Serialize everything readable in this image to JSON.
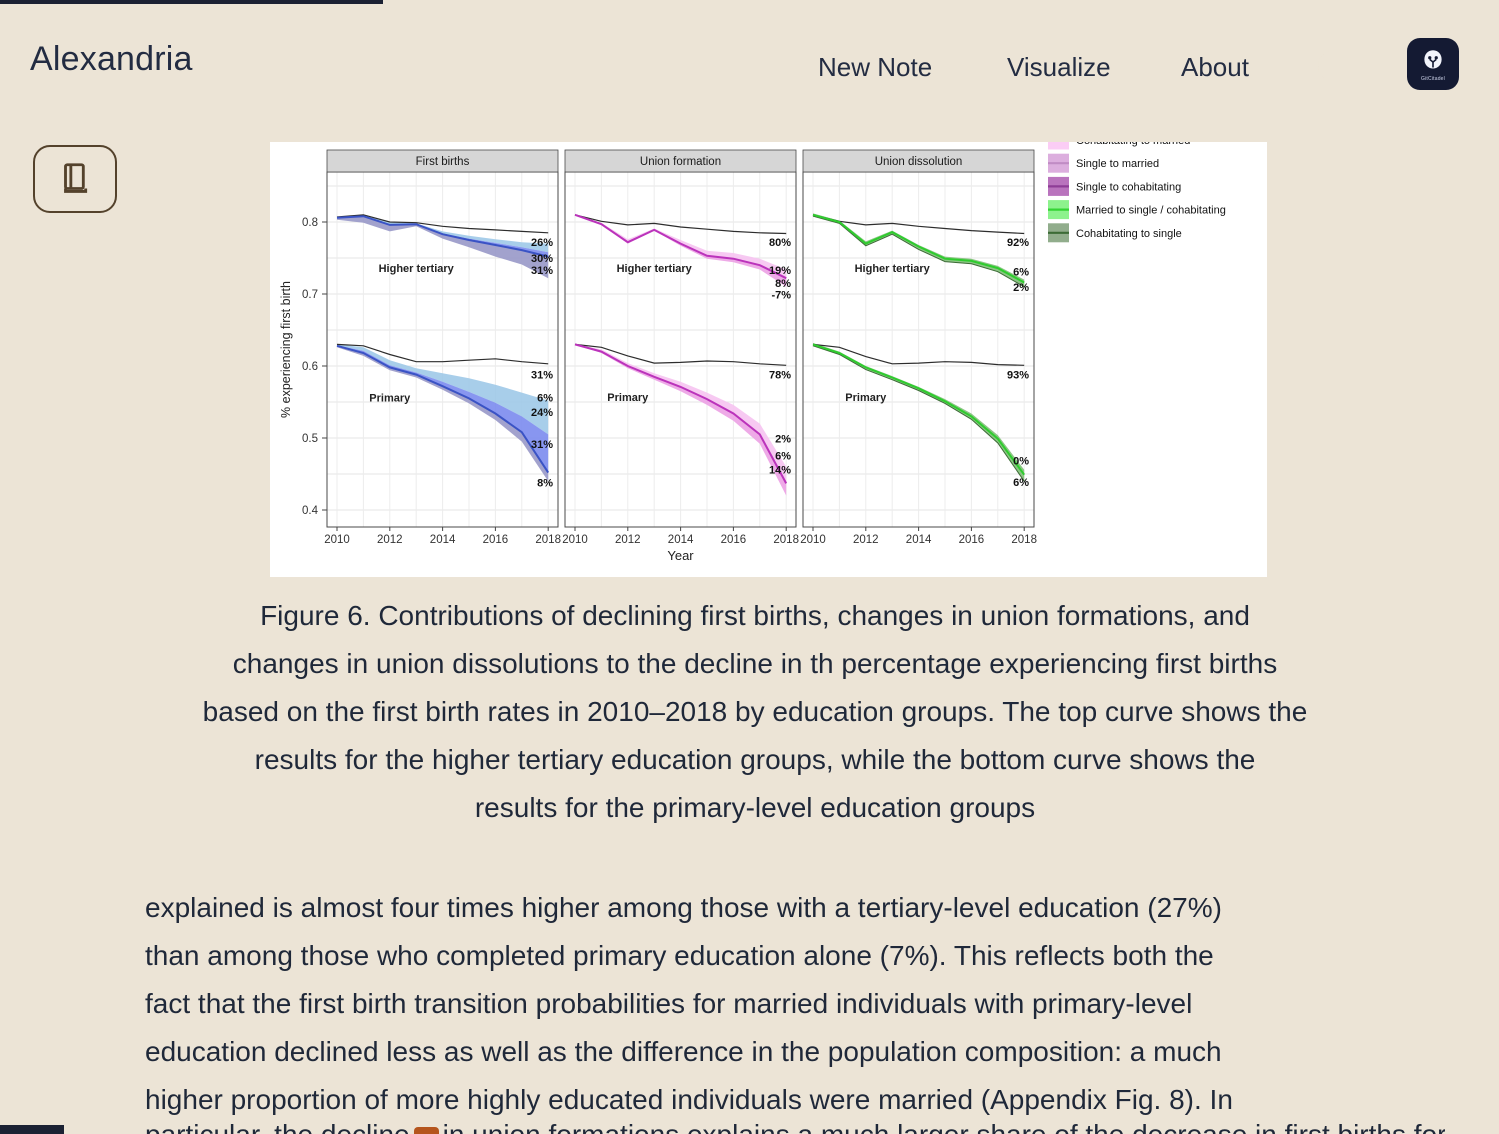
{
  "header": {
    "brand": "Alexandria",
    "nav_items": [
      "New Note",
      "Visualize",
      "About"
    ],
    "badge_label": "GitCitadel"
  },
  "figure": {
    "caption_lines": [
      "Figure 6. Contributions of declining first births, changes in union formations, and",
      "changes in union dissolutions to the decline in th percentage experiencing first births",
      "based on the first birth rates in 2010–2018 by education groups. The top curve shows the",
      "results for the higher tertiary education groups, while the bottom curve shows the",
      "results for the primary-level education groups"
    ]
  },
  "article": {
    "lines": [
      "explained is almost four times higher among those with a tertiary-level education (27%)",
      "than among those who completed primary education alone (7%). This reflects both the",
      "fact that the first birth transition probabilities for married individuals with primary-level",
      "education declined less as well as the difference in the population composition: a much",
      "higher proportion of more highly educated individuals were married (Appendix Fig. 8). In"
    ],
    "partial_before": "particular, the decline",
    "partial_after": "in union formations explains a much larger share of the decrease in first births for the"
  },
  "chart_data": {
    "type": "line",
    "x": [
      2010,
      2011,
      2012,
      2013,
      2014,
      2015,
      2016,
      2017,
      2018
    ],
    "x_ticks": [
      2010,
      2012,
      2014,
      2016,
      2018
    ],
    "y_ticks": [
      0.4,
      0.5,
      0.6,
      0.7,
      0.8
    ],
    "ylim": [
      0.376,
      0.869
    ],
    "xlabel": "Year",
    "ylabel": "% experiencing first birth",
    "legend": [
      {
        "label": "Cohabitating to married",
        "fill": "#fbcdf5",
        "line": "#f0a8e8"
      },
      {
        "label": "Single to married",
        "fill": "#dcaede",
        "line": "#c08cc4"
      },
      {
        "label": "Single to cohabitating",
        "fill": "#b973bd",
        "line": "#8e3d96"
      },
      {
        "label": "Married to single / cohabitating",
        "fill": "#8df28d",
        "line": "#35d435"
      },
      {
        "label": "Cohabitating to single",
        "fill": "#91ad8c",
        "line": "#3c6b36"
      }
    ],
    "panels": [
      {
        "title": "First births",
        "groups": [
          {
            "name": "Higher tertiary",
            "name_pos": {
              "year": 2013,
              "v": 0.736
            },
            "black": [
              0.807,
              0.81,
              0.8,
              0.799,
              0.794,
              0.791,
              0.789,
              0.787,
              0.785
            ],
            "bands": [
              {
                "color": "#9fc9e8",
                "upper": [
                  0.807,
                  0.81,
                  0.8,
                  0.798,
                  0.787,
                  0.781,
                  0.776,
                  0.772,
                  0.77
                ],
                "lower": [
                  0.806,
                  0.808,
                  0.796,
                  0.797,
                  0.784,
                  0.777,
                  0.771,
                  0.765,
                  0.758
                ]
              },
              {
                "color": "#7b8bee",
                "upper": [
                  0.806,
                  0.808,
                  0.796,
                  0.797,
                  0.784,
                  0.777,
                  0.771,
                  0.765,
                  0.758
                ],
                "lower": [
                  0.806,
                  0.808,
                  0.796,
                  0.797,
                  0.783,
                  0.775,
                  0.768,
                  0.761,
                  0.752
                ]
              },
              {
                "color": "#9898c8",
                "upper": [
                  0.806,
                  0.808,
                  0.796,
                  0.797,
                  0.783,
                  0.775,
                  0.768,
                  0.761,
                  0.752
                ],
                "lower": [
                  0.803,
                  0.799,
                  0.787,
                  0.794,
                  0.777,
                  0.765,
                  0.752,
                  0.741,
                  0.722
                ]
              }
            ],
            "lines": [
              {
                "color": "#3a53c5",
                "width": 2,
                "values": [
                  0.806,
                  0.808,
                  0.796,
                  0.797,
                  0.783,
                  0.775,
                  0.768,
                  0.761,
                  0.752
                ]
              }
            ],
            "annotations": [
              {
                "text": "26%",
                "v": 0.772
              },
              {
                "text": "30%",
                "v": 0.75
              },
              {
                "text": "31%",
                "v": 0.733
              }
            ]
          },
          {
            "name": "Primary",
            "name_pos": {
              "year": 2012,
              "v": 0.556
            },
            "black": [
              0.63,
              0.628,
              0.616,
              0.606,
              0.606,
              0.608,
              0.61,
              0.606,
              0.603
            ],
            "bands": [
              {
                "color": "#9fc9e8",
                "upper": [
                  0.63,
                  0.626,
                  0.608,
                  0.597,
                  0.59,
                  0.583,
                  0.574,
                  0.563,
                  0.552
                ],
                "lower": [
                  0.629,
                  0.621,
                  0.601,
                  0.591,
                  0.578,
                  0.564,
                  0.549,
                  0.53,
                  0.505
                ]
              },
              {
                "color": "#7b8bee",
                "upper": [
                  0.629,
                  0.621,
                  0.601,
                  0.591,
                  0.578,
                  0.564,
                  0.549,
                  0.53,
                  0.505
                ],
                "lower": [
                  0.628,
                  0.618,
                  0.598,
                  0.588,
                  0.572,
                  0.555,
                  0.534,
                  0.508,
                  0.452
                ]
              },
              {
                "color": "#9898c8",
                "upper": [
                  0.628,
                  0.618,
                  0.598,
                  0.588,
                  0.572,
                  0.555,
                  0.534,
                  0.508,
                  0.452
                ],
                "lower": [
                  0.626,
                  0.614,
                  0.594,
                  0.584,
                  0.567,
                  0.548,
                  0.525,
                  0.495,
                  0.44
                ]
              }
            ],
            "lines": [
              {
                "color": "#3a53c5",
                "width": 2,
                "values": [
                  0.628,
                  0.618,
                  0.598,
                  0.588,
                  0.572,
                  0.555,
                  0.534,
                  0.508,
                  0.452
                ]
              }
            ],
            "annotations": [
              {
                "text": "31%",
                "v": 0.588
              },
              {
                "text": "6%",
                "v": 0.556
              },
              {
                "text": "24%",
                "v": 0.536
              },
              {
                "text": "31%",
                "v": 0.492
              },
              {
                "text": "8%",
                "v": 0.438
              }
            ]
          }
        ]
      },
      {
        "title": "Union formation",
        "groups": [
          {
            "name": "Higher tertiary",
            "name_pos": {
              "year": 2013,
              "v": 0.736
            },
            "black": [
              0.81,
              0.801,
              0.796,
              0.798,
              0.793,
              0.79,
              0.787,
              0.785,
              0.784
            ],
            "bands": [
              {
                "color": "#f6c3f1",
                "upper": [
                  0.81,
                  0.799,
                  0.776,
                  0.791,
                  0.775,
                  0.76,
                  0.757,
                  0.749,
                  0.734
                ],
                "lower": [
                  0.81,
                  0.797,
                  0.772,
                  0.789,
                  0.77,
                  0.753,
                  0.749,
                  0.74,
                  0.722
                ]
              },
              {
                "color": "#eca1e4",
                "upper": [
                  0.81,
                  0.797,
                  0.772,
                  0.789,
                  0.77,
                  0.753,
                  0.749,
                  0.74,
                  0.722
                ],
                "lower": [
                  0.81,
                  0.796,
                  0.77,
                  0.788,
                  0.767,
                  0.749,
                  0.744,
                  0.734,
                  0.71
                ]
              }
            ],
            "lines": [
              {
                "color": "#bb33bb",
                "width": 2,
                "values": [
                  0.81,
                  0.797,
                  0.772,
                  0.789,
                  0.77,
                  0.753,
                  0.749,
                  0.74,
                  0.722
                ]
              }
            ],
            "annotations": [
              {
                "text": "80%",
                "v": 0.772
              },
              {
                "text": "19%",
                "v": 0.733
              },
              {
                "text": "8%",
                "v": 0.715
              },
              {
                "text": "-7%",
                "v": 0.699
              }
            ]
          },
          {
            "name": "Primary",
            "name_pos": {
              "year": 2012,
              "v": 0.557
            },
            "black": [
              0.63,
              0.626,
              0.614,
              0.604,
              0.605,
              0.607,
              0.606,
              0.603,
              0.601
            ],
            "bands": [
              {
                "color": "#f6c3f1",
                "upper": [
                  0.63,
                  0.623,
                  0.604,
                  0.59,
                  0.578,
                  0.563,
                  0.546,
                  0.52,
                  0.46
                ],
                "lower": [
                  0.63,
                  0.62,
                  0.6,
                  0.585,
                  0.571,
                  0.554,
                  0.534,
                  0.505,
                  0.437
                ]
              },
              {
                "color": "#eca1e4",
                "upper": [
                  0.63,
                  0.62,
                  0.6,
                  0.585,
                  0.571,
                  0.554,
                  0.534,
                  0.505,
                  0.437
                ],
                "lower": [
                  0.63,
                  0.618,
                  0.597,
                  0.581,
                  0.565,
                  0.546,
                  0.524,
                  0.492,
                  0.42
                ]
              }
            ],
            "lines": [
              {
                "color": "#bb33bb",
                "width": 2,
                "values": [
                  0.63,
                  0.62,
                  0.6,
                  0.585,
                  0.571,
                  0.554,
                  0.534,
                  0.505,
                  0.437
                ]
              }
            ],
            "annotations": [
              {
                "text": "78%",
                "v": 0.588
              },
              {
                "text": "2%",
                "v": 0.499
              },
              {
                "text": "6%",
                "v": 0.476
              },
              {
                "text": "14%",
                "v": 0.456
              }
            ]
          }
        ]
      },
      {
        "title": "Union dissolution",
        "groups": [
          {
            "name": "Higher tertiary",
            "name_pos": {
              "year": 2013,
              "v": 0.736
            },
            "black": [
              0.81,
              0.801,
              0.796,
              0.798,
              0.794,
              0.791,
              0.788,
              0.786,
              0.784
            ],
            "bands": [
              {
                "color": "#7fbf77",
                "upper": [
                  0.812,
                  0.802,
                  0.773,
                  0.788,
                  0.768,
                  0.752,
                  0.749,
                  0.739,
                  0.72
                ],
                "lower": [
                  0.808,
                  0.798,
                  0.767,
                  0.783,
                  0.762,
                  0.745,
                  0.742,
                  0.731,
                  0.71
                ]
              }
            ],
            "lines": [
              {
                "color": "#3c6b36",
                "width": 1,
                "values": [
                  0.808,
                  0.798,
                  0.767,
                  0.783,
                  0.762,
                  0.745,
                  0.742,
                  0.731,
                  0.71
                ]
              },
              {
                "color": "#2ecc2e",
                "width": 2,
                "values": [
                  0.81,
                  0.8,
                  0.77,
                  0.786,
                  0.766,
                  0.749,
                  0.746,
                  0.736,
                  0.716
                ]
              }
            ],
            "annotations": [
              {
                "text": "92%",
                "v": 0.772
              },
              {
                "text": "6%",
                "v": 0.731
              },
              {
                "text": "2%",
                "v": 0.71
              }
            ]
          },
          {
            "name": "Primary",
            "name_pos": {
              "year": 2012,
              "v": 0.557
            },
            "black": [
              0.63,
              0.626,
              0.613,
              0.603,
              0.604,
              0.606,
              0.605,
              0.602,
              0.601
            ],
            "bands": [
              {
                "color": "#7fbf77",
                "upper": [
                  0.632,
                  0.62,
                  0.6,
                  0.586,
                  0.571,
                  0.554,
                  0.534,
                  0.504,
                  0.456
                ],
                "lower": [
                  0.628,
                  0.616,
                  0.595,
                  0.581,
                  0.566,
                  0.548,
                  0.526,
                  0.493,
                  0.44
                ]
              }
            ],
            "lines": [
              {
                "color": "#3c6b36",
                "width": 1,
                "values": [
                  0.628,
                  0.616,
                  0.595,
                  0.581,
                  0.566,
                  0.548,
                  0.526,
                  0.493,
                  0.44
                ]
              },
              {
                "color": "#2ecc2e",
                "width": 2,
                "values": [
                  0.63,
                  0.618,
                  0.598,
                  0.584,
                  0.569,
                  0.551,
                  0.53,
                  0.499,
                  0.449
                ]
              }
            ],
            "annotations": [
              {
                "text": "0%",
                "v": 0.469
              },
              {
                "text": "93%",
                "v": 0.588
              },
              {
                "text": "6%",
                "v": 0.439
              }
            ]
          }
        ]
      }
    ]
  }
}
